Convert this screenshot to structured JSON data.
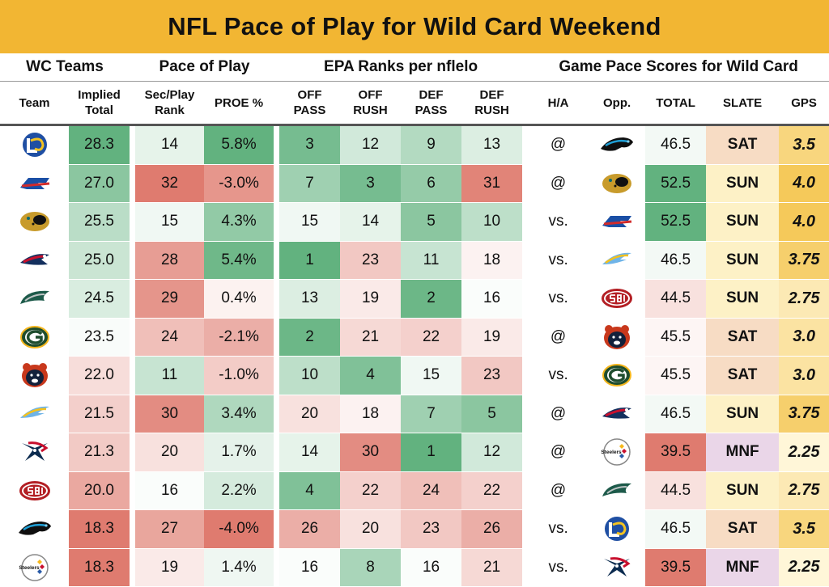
{
  "title": "NFL Pace of Play for Wild Card Weekend",
  "groups": {
    "wc_teams": "WC Teams",
    "pace": "Pace of Play",
    "epa": "EPA Ranks per nflelo",
    "gps": "Game Pace Scores for Wild Card"
  },
  "columns": {
    "team": "Team",
    "implied_total": [
      "Implied",
      "Total"
    ],
    "sec_play_rank": [
      "Sec/Play",
      "Rank"
    ],
    "proe": "PROE %",
    "off_pass": [
      "OFF",
      "PASS"
    ],
    "off_rush": [
      "OFF",
      "RUSH"
    ],
    "def_pass": [
      "DEF",
      "PASS"
    ],
    "def_rush": [
      "DEF",
      "RUSH"
    ],
    "ha": "H/A",
    "opp": "Opp.",
    "total": "TOTAL",
    "slate": "SLATE",
    "gps": "GPS"
  },
  "rows": [
    {
      "team": "rams-logo",
      "implied": "28.3",
      "sec": "14",
      "proe": "5.8%",
      "op": "3",
      "or": "12",
      "dp": "9",
      "dr": "13",
      "ha": "@",
      "opp": "panthers-logo",
      "total": "46.5",
      "slate": "SAT",
      "gps": "3.5"
    },
    {
      "team": "bills-logo",
      "implied": "27.0",
      "sec": "32",
      "proe": "-3.0%",
      "op": "7",
      "or": "3",
      "dp": "6",
      "dr": "31",
      "ha": "@",
      "opp": "jaguars-logo",
      "total": "52.5",
      "slate": "SUN",
      "gps": "4.0"
    },
    {
      "team": "jaguars-logo",
      "implied": "25.5",
      "sec": "15",
      "proe": "4.3%",
      "op": "15",
      "or": "14",
      "dp": "5",
      "dr": "10",
      "ha": "vs.",
      "opp": "bills-logo",
      "total": "52.5",
      "slate": "SUN",
      "gps": "4.0"
    },
    {
      "team": "patriots-logo",
      "implied": "25.0",
      "sec": "28",
      "proe": "5.4%",
      "op": "1",
      "or": "23",
      "dp": "11",
      "dr": "18",
      "ha": "vs.",
      "opp": "chargers-logo",
      "total": "46.5",
      "slate": "SUN",
      "gps": "3.75"
    },
    {
      "team": "eagles-logo",
      "implied": "24.5",
      "sec": "29",
      "proe": "0.4%",
      "op": "13",
      "or": "19",
      "dp": "2",
      "dr": "16",
      "ha": "vs.",
      "opp": "49ers-logo",
      "total": "44.5",
      "slate": "SUN",
      "gps": "2.75"
    },
    {
      "team": "packers-logo",
      "implied": "23.5",
      "sec": "24",
      "proe": "-2.1%",
      "op": "2",
      "or": "21",
      "dp": "22",
      "dr": "19",
      "ha": "@",
      "opp": "bears-logo",
      "total": "45.5",
      "slate": "SAT",
      "gps": "3.0"
    },
    {
      "team": "bears-logo",
      "implied": "22.0",
      "sec": "11",
      "proe": "-1.0%",
      "op": "10",
      "or": "4",
      "dp": "15",
      "dr": "23",
      "ha": "vs.",
      "opp": "packers-logo",
      "total": "45.5",
      "slate": "SAT",
      "gps": "3.0"
    },
    {
      "team": "chargers-logo",
      "implied": "21.5",
      "sec": "30",
      "proe": "3.4%",
      "op": "20",
      "or": "18",
      "dp": "7",
      "dr": "5",
      "ha": "@",
      "opp": "patriots-logo",
      "total": "46.5",
      "slate": "SUN",
      "gps": "3.75"
    },
    {
      "team": "texans-logo",
      "implied": "21.3",
      "sec": "20",
      "proe": "1.7%",
      "op": "14",
      "or": "30",
      "dp": "1",
      "dr": "12",
      "ha": "@",
      "opp": "steelers-logo",
      "total": "39.5",
      "slate": "MNF",
      "gps": "2.25"
    },
    {
      "team": "49ers-logo",
      "implied": "20.0",
      "sec": "16",
      "proe": "2.2%",
      "op": "4",
      "or": "22",
      "dp": "24",
      "dr": "22",
      "ha": "@",
      "opp": "eagles-logo",
      "total": "44.5",
      "slate": "SUN",
      "gps": "2.75"
    },
    {
      "team": "panthers-logo",
      "implied": "18.3",
      "sec": "27",
      "proe": "-4.0%",
      "op": "26",
      "or": "20",
      "dp": "23",
      "dr": "26",
      "ha": "vs.",
      "opp": "rams-logo",
      "total": "46.5",
      "slate": "SAT",
      "gps": "3.5"
    },
    {
      "team": "steelers-logo",
      "implied": "18.3",
      "sec": "19",
      "proe": "1.4%",
      "op": "16",
      "or": "8",
      "dp": "16",
      "dr": "21",
      "ha": "vs.",
      "opp": "texans-logo",
      "total": "39.5",
      "slate": "MNF",
      "gps": "2.25"
    }
  ],
  "colors": {
    "title_bg": "#f2b633",
    "green_strong": "#62b27f",
    "red_strong": "#df7b6f",
    "neutral": "#ffffff",
    "slate_sat": "#f7dcc4",
    "slate_sun": "#fdf1c6",
    "slate_mnf": "#ead6e8",
    "gps_high": "#f5c95a",
    "gps_low": "#fff6d8"
  },
  "logo_text": {
    "steelers": "Steelers"
  }
}
